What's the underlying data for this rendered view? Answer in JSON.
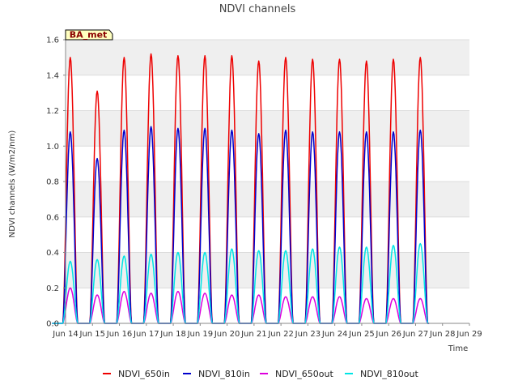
{
  "chart_data": {
    "type": "line",
    "title": "NDVI channels",
    "xlabel": "Time",
    "ylabel": "NDVI channels (W/m2/nm)",
    "site_badge": "BA_met",
    "ylim": [
      0.0,
      1.6
    ],
    "xlim": [
      14,
      29
    ],
    "yticks": [
      0.0,
      0.2,
      0.4,
      0.6,
      0.8,
      1.0,
      1.2,
      1.4,
      1.6
    ],
    "ytick_labels": [
      "0.0",
      "0.2",
      "0.4",
      "0.6",
      "0.8",
      "1.0",
      "1.2",
      "1.4",
      "1.6"
    ],
    "xticks": [
      14,
      15,
      16,
      17,
      18,
      19,
      20,
      21,
      22,
      23,
      24,
      25,
      26,
      27,
      28,
      29
    ],
    "xtick_labels": [
      "Jun 14",
      "Jun 15",
      "Jun 16",
      "Jun 17",
      "Jun 18",
      "Jun 19",
      "Jun 20",
      "Jun 21",
      "Jun 22",
      "Jun 23",
      "Jun 24",
      "Jun 25",
      "Jun 26",
      "Jun 27",
      "Jun 28",
      "Jun 29"
    ],
    "days": [
      14,
      15,
      16,
      17,
      18,
      19,
      20,
      21,
      22,
      23,
      24,
      25,
      26,
      27
    ],
    "series": [
      {
        "name": "NDVI_650in",
        "color": "#ee0000",
        "daily_peaks": [
          1.5,
          1.31,
          1.5,
          1.52,
          1.51,
          1.51,
          1.51,
          1.48,
          1.5,
          1.49,
          1.49,
          1.48,
          1.49,
          1.5
        ]
      },
      {
        "name": "NDVI_810in",
        "color": "#0000cc",
        "daily_peaks": [
          1.08,
          0.93,
          1.09,
          1.11,
          1.1,
          1.1,
          1.09,
          1.07,
          1.09,
          1.08,
          1.08,
          1.08,
          1.08,
          1.09
        ]
      },
      {
        "name": "NDVI_650out",
        "color": "#dd00dd",
        "daily_peaks": [
          0.2,
          0.16,
          0.18,
          0.17,
          0.18,
          0.17,
          0.16,
          0.16,
          0.15,
          0.15,
          0.15,
          0.14,
          0.14,
          0.14
        ]
      },
      {
        "name": "NDVI_810out",
        "color": "#00e5e5",
        "daily_peaks": [
          0.35,
          0.36,
          0.38,
          0.39,
          0.4,
          0.4,
          0.42,
          0.41,
          0.41,
          0.42,
          0.43,
          0.43,
          0.44,
          0.45
        ]
      }
    ]
  }
}
